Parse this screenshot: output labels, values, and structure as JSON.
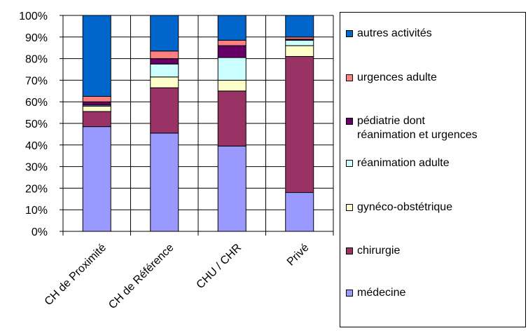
{
  "chart_data": {
    "type": "bar",
    "stacked": true,
    "percent": true,
    "categories": [
      "CH de Proximité",
      "CH de Référence",
      "CHU / CHR",
      "Privé"
    ],
    "yticks": [
      "0%",
      "10%",
      "20%",
      "30%",
      "40%",
      "50%",
      "60%",
      "70%",
      "80%",
      "90%",
      "100%"
    ],
    "ylim": [
      0,
      100
    ],
    "grid": true,
    "legend_position": "right",
    "series": [
      {
        "name": "médecine",
        "color": "#9999FF",
        "values": [
          48.5,
          45.5,
          39.5,
          18
        ]
      },
      {
        "name": "chirurgie",
        "color": "#993366",
        "values": [
          7,
          21,
          25.5,
          63
        ]
      },
      {
        "name": "gynéco-obstétrique",
        "color": "#FFFFCC",
        "values": [
          2.5,
          5,
          5,
          5
        ]
      },
      {
        "name": "réanimation adulte",
        "color": "#CCFFFF",
        "values": [
          0.5,
          6,
          10.5,
          2.5
        ]
      },
      {
        "name": "pédiatrie dont réanimation et urgences",
        "color": "#660066",
        "values": [
          1.5,
          2.5,
          5.5,
          0.5
        ]
      },
      {
        "name": "urgences adulte",
        "color": "#FF8080",
        "values": [
          2.5,
          3.5,
          2.5,
          1
        ]
      },
      {
        "name": "autres activités",
        "color": "#0066CC",
        "values": [
          37.5,
          16.5,
          11.5,
          10
        ]
      }
    ]
  },
  "legend": {
    "items": [
      {
        "label": "autres activités",
        "color": "#0066CC"
      },
      {
        "label": "urgences adulte",
        "color": "#FF8080"
      },
      {
        "label": "pédiatrie dont\nréanimation et urgences",
        "color": "#660066"
      },
      {
        "label": "réanimation adulte",
        "color": "#CCFFFF"
      },
      {
        "label": "gynéco-obstétrique",
        "color": "#FFFFCC"
      },
      {
        "label": "chirurgie",
        "color": "#993366"
      },
      {
        "label": "médecine",
        "color": "#9999FF"
      }
    ]
  }
}
